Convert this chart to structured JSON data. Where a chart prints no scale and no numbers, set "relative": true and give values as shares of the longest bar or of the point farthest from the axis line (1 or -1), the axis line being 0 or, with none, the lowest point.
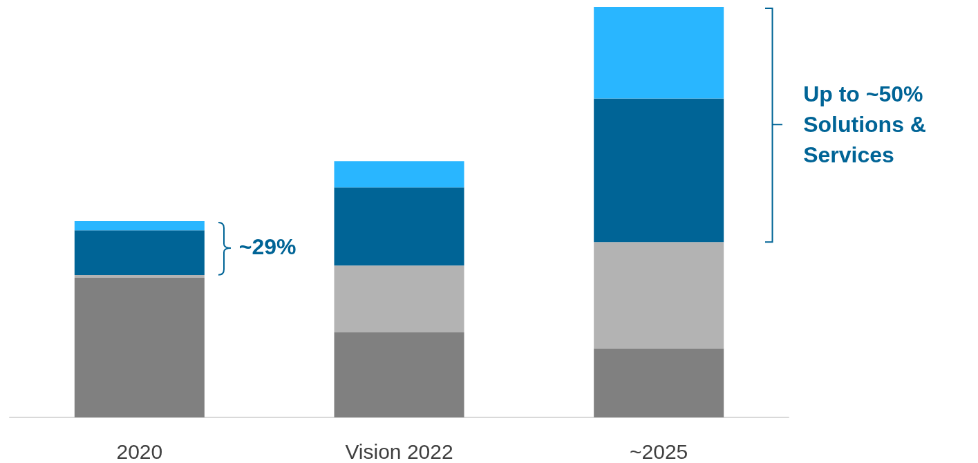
{
  "chart_data": {
    "type": "bar",
    "stacked": true,
    "relative": true,
    "categories": [
      "2020",
      "Vision 2022",
      "~2025"
    ],
    "series": [
      {
        "color": "#808080",
        "values": [
          0.34,
          0.207,
          0.168
        ]
      },
      {
        "color": "#b3b3b3",
        "values": [
          0.007,
          0.163,
          0.259
        ]
      },
      {
        "color": "#006496",
        "values": [
          0.109,
          0.19,
          0.35
        ]
      },
      {
        "color": "#29b6ff",
        "values": [
          0.022,
          0.064,
          0.223
        ]
      }
    ],
    "annotations": [
      "~29%",
      "Up to ~50% Solutions & Services"
    ]
  }
}
